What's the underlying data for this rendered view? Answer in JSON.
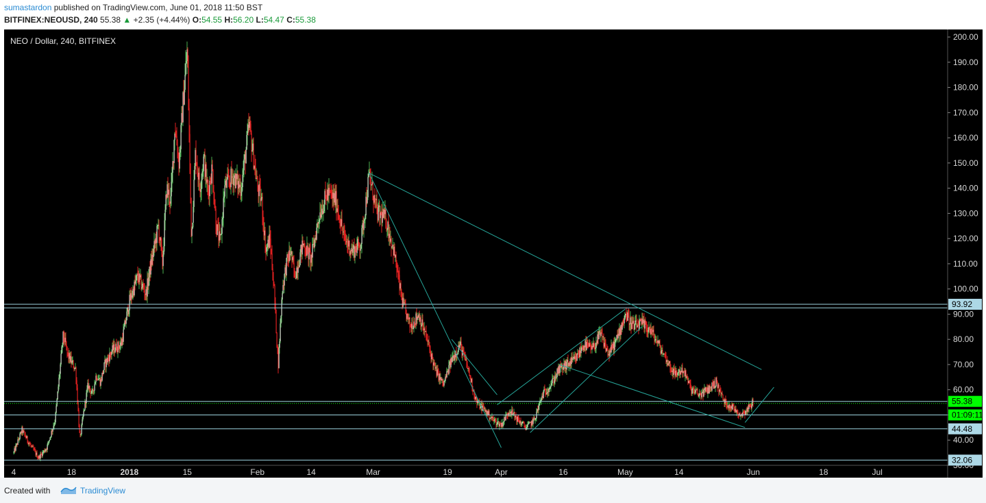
{
  "header": {
    "username": "sumastardon",
    "published_text": "published on TradingView.com, June 01, 2018 11:50 BST",
    "symbol": "BITFINEX:NEOUSD, 240",
    "last": "55.38",
    "change_arrow": "▲",
    "change": "+2.35 (+4.44%)",
    "o_label": "O:",
    "o_value": "54.55",
    "h_label": "H:",
    "h_value": "56.20",
    "l_label": "L:",
    "l_value": "54.47",
    "c_label": "C:",
    "c_value": "55.38"
  },
  "footer": {
    "created_with": "Created with",
    "brand": "TradingView"
  },
  "colors": {
    "background": "#000000",
    "up_candle": "#4caf50",
    "down_candle": "#e02020",
    "trendline": "#26a69a",
    "level_line": "#9ed4e0",
    "price_label_bg": "#add8e6",
    "current_price_bg": "#00ff00"
  },
  "chart_data": {
    "type": "candlestick",
    "title": "NEO / Dollar, 240, BITFINEX",
    "y_range": [
      30,
      203
    ],
    "y_ticks": [
      "200.00",
      "190.00",
      "180.00",
      "170.00",
      "160.00",
      "150.00",
      "140.00",
      "130.00",
      "120.00",
      "110.00",
      "100.00",
      "90.00",
      "80.00",
      "70.00",
      "60.00",
      "50.00",
      "40.00",
      "30.00"
    ],
    "x_ticks": [
      "4",
      "18",
      "2018",
      "15",
      "Feb",
      "14",
      "Mar",
      "19",
      "Apr",
      "16",
      "May",
      "14",
      "Jun",
      "18",
      "Jul"
    ],
    "price_path": [
      {
        "date": "2017-12-04",
        "price": 35
      },
      {
        "date": "2017-12-06",
        "price": 44
      },
      {
        "date": "2017-12-08",
        "price": 38
      },
      {
        "date": "2017-12-10",
        "price": 33
      },
      {
        "date": "2017-12-12",
        "price": 37
      },
      {
        "date": "2017-12-14",
        "price": 48
      },
      {
        "date": "2017-12-16",
        "price": 82
      },
      {
        "date": "2017-12-17",
        "price": 74
      },
      {
        "date": "2017-12-18",
        "price": 71
      },
      {
        "date": "2017-12-19",
        "price": 68
      },
      {
        "date": "2017-12-20",
        "price": 40
      },
      {
        "date": "2017-12-21",
        "price": 52
      },
      {
        "date": "2017-12-22",
        "price": 62
      },
      {
        "date": "2017-12-23",
        "price": 58
      },
      {
        "date": "2017-12-24",
        "price": 66
      },
      {
        "date": "2017-12-25",
        "price": 63
      },
      {
        "date": "2017-12-26",
        "price": 70
      },
      {
        "date": "2017-12-28",
        "price": 76
      },
      {
        "date": "2017-12-30",
        "price": 78
      },
      {
        "date": "2018-01-01",
        "price": 95
      },
      {
        "date": "2018-01-03",
        "price": 105
      },
      {
        "date": "2018-01-05",
        "price": 98
      },
      {
        "date": "2018-01-06",
        "price": 108
      },
      {
        "date": "2018-01-08",
        "price": 125
      },
      {
        "date": "2018-01-09",
        "price": 110
      },
      {
        "date": "2018-01-10",
        "price": 140
      },
      {
        "date": "2018-01-11",
        "price": 135
      },
      {
        "date": "2018-01-12",
        "price": 165
      },
      {
        "date": "2018-01-13",
        "price": 150
      },
      {
        "date": "2018-01-14",
        "price": 175
      },
      {
        "date": "2018-01-15",
        "price": 195
      },
      {
        "date": "2018-01-16",
        "price": 120
      },
      {
        "date": "2018-01-17",
        "price": 155
      },
      {
        "date": "2018-01-18",
        "price": 140
      },
      {
        "date": "2018-01-19",
        "price": 152
      },
      {
        "date": "2018-01-20",
        "price": 138
      },
      {
        "date": "2018-01-21",
        "price": 148
      },
      {
        "date": "2018-01-22",
        "price": 125
      },
      {
        "date": "2018-01-23",
        "price": 118
      },
      {
        "date": "2018-01-24",
        "price": 140
      },
      {
        "date": "2018-01-26",
        "price": 145
      },
      {
        "date": "2018-01-28",
        "price": 140
      },
      {
        "date": "2018-01-30",
        "price": 165
      },
      {
        "date": "2018-02-01",
        "price": 140
      },
      {
        "date": "2018-02-02",
        "price": 135
      },
      {
        "date": "2018-02-03",
        "price": 115
      },
      {
        "date": "2018-02-04",
        "price": 120
      },
      {
        "date": "2018-02-05",
        "price": 100
      },
      {
        "date": "2018-02-06",
        "price": 70
      },
      {
        "date": "2018-02-07",
        "price": 100
      },
      {
        "date": "2018-02-08",
        "price": 110
      },
      {
        "date": "2018-02-09",
        "price": 115
      },
      {
        "date": "2018-02-10",
        "price": 105
      },
      {
        "date": "2018-02-12",
        "price": 118
      },
      {
        "date": "2018-02-14",
        "price": 112
      },
      {
        "date": "2018-02-16",
        "price": 130
      },
      {
        "date": "2018-02-18",
        "price": 138
      },
      {
        "date": "2018-02-20",
        "price": 135
      },
      {
        "date": "2018-02-22",
        "price": 120
      },
      {
        "date": "2018-02-24",
        "price": 115
      },
      {
        "date": "2018-02-26",
        "price": 118
      },
      {
        "date": "2018-02-28",
        "price": 145
      },
      {
        "date": "2018-03-02",
        "price": 130
      },
      {
        "date": "2018-03-04",
        "price": 128
      },
      {
        "date": "2018-03-06",
        "price": 115
      },
      {
        "date": "2018-03-08",
        "price": 95
      },
      {
        "date": "2018-03-10",
        "price": 85
      },
      {
        "date": "2018-03-12",
        "price": 90
      },
      {
        "date": "2018-03-14",
        "price": 80
      },
      {
        "date": "2018-03-16",
        "price": 68
      },
      {
        "date": "2018-03-18",
        "price": 62
      },
      {
        "date": "2018-03-20",
        "price": 72
      },
      {
        "date": "2018-03-22",
        "price": 78
      },
      {
        "date": "2018-03-24",
        "price": 68
      },
      {
        "date": "2018-03-26",
        "price": 55
      },
      {
        "date": "2018-03-28",
        "price": 52
      },
      {
        "date": "2018-03-30",
        "price": 48
      },
      {
        "date": "2018-04-01",
        "price": 46
      },
      {
        "date": "2018-04-03",
        "price": 52
      },
      {
        "date": "2018-04-05",
        "price": 48
      },
      {
        "date": "2018-04-07",
        "price": 45
      },
      {
        "date": "2018-04-09",
        "price": 48
      },
      {
        "date": "2018-04-11",
        "price": 58
      },
      {
        "date": "2018-04-13",
        "price": 62
      },
      {
        "date": "2018-04-15",
        "price": 68
      },
      {
        "date": "2018-04-17",
        "price": 70
      },
      {
        "date": "2018-04-19",
        "price": 72
      },
      {
        "date": "2018-04-21",
        "price": 78
      },
      {
        "date": "2018-04-23",
        "price": 76
      },
      {
        "date": "2018-04-25",
        "price": 82
      },
      {
        "date": "2018-04-27",
        "price": 74
      },
      {
        "date": "2018-04-29",
        "price": 80
      },
      {
        "date": "2018-05-01",
        "price": 90
      },
      {
        "date": "2018-05-03",
        "price": 85
      },
      {
        "date": "2018-05-05",
        "price": 86
      },
      {
        "date": "2018-05-07",
        "price": 84
      },
      {
        "date": "2018-05-09",
        "price": 78
      },
      {
        "date": "2018-05-11",
        "price": 72
      },
      {
        "date": "2018-05-13",
        "price": 66
      },
      {
        "date": "2018-05-15",
        "price": 68
      },
      {
        "date": "2018-05-17",
        "price": 60
      },
      {
        "date": "2018-05-19",
        "price": 58
      },
      {
        "date": "2018-05-21",
        "price": 60
      },
      {
        "date": "2018-05-23",
        "price": 63
      },
      {
        "date": "2018-05-25",
        "price": 55
      },
      {
        "date": "2018-05-27",
        "price": 53
      },
      {
        "date": "2018-05-29",
        "price": 50
      },
      {
        "date": "2018-05-31",
        "price": 53
      },
      {
        "date": "2018-06-01",
        "price": 55.38
      }
    ],
    "horizontal_levels": [
      {
        "price": 93.92,
        "label": "93.92"
      },
      {
        "price": 92.5,
        "label": ""
      },
      {
        "price": 55.38,
        "label": "55.38"
      },
      {
        "price": 50.0,
        "label": "01:09:11"
      },
      {
        "price": 44.48,
        "label": "44.48"
      },
      {
        "price": 32.06,
        "label": "32.06"
      }
    ],
    "trendlines": [
      [
        {
          "date": "2018-02-28",
          "price": 146
        },
        {
          "date": "2018-06-03",
          "price": 68
        }
      ],
      [
        {
          "date": "2018-02-28",
          "price": 146
        },
        {
          "date": "2018-04-01",
          "price": 37
        }
      ],
      [
        {
          "date": "2018-03-20",
          "price": 80
        },
        {
          "date": "2018-03-31",
          "price": 58
        }
      ],
      [
        {
          "date": "2018-03-31",
          "price": 54
        },
        {
          "date": "2018-05-01",
          "price": 92
        }
      ],
      [
        {
          "date": "2018-04-08",
          "price": 43
        },
        {
          "date": "2018-05-05",
          "price": 85
        }
      ],
      [
        {
          "date": "2018-04-15",
          "price": 70
        },
        {
          "date": "2018-05-30",
          "price": 45
        }
      ],
      [
        {
          "date": "2018-05-30",
          "price": 47
        },
        {
          "date": "2018-06-06",
          "price": 61
        }
      ]
    ],
    "current_price": 55.38,
    "countdown": "01:09:11"
  }
}
